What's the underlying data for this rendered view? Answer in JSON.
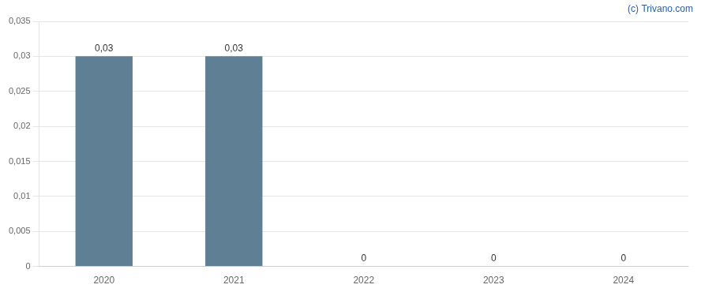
{
  "chart_data": {
    "type": "bar",
    "categories": [
      "2020",
      "2021",
      "2022",
      "2023",
      "2024"
    ],
    "values": [
      0.03,
      0.03,
      0,
      0,
      0
    ],
    "value_labels": [
      "0,03",
      "0,03",
      "0",
      "0",
      "0"
    ],
    "data_labels": true,
    "color": "#5f7f95",
    "ylim": [
      0,
      0.035
    ],
    "yticks": [
      0,
      {
        "value": 0.005,
        "label": "0,005"
      },
      {
        "value": 0.01,
        "label": "0,01"
      },
      {
        "value": 0.015,
        "label": "0,015"
      },
      {
        "value": 0.02,
        "label": "0,02"
      },
      {
        "value": 0.025,
        "label": "0,025"
      },
      {
        "value": 0.03,
        "label": "0,03"
      },
      {
        "value": 0.035,
        "label": "0,035"
      }
    ],
    "grid": true,
    "annotations": [
      "(c) Trivano.com"
    ]
  }
}
